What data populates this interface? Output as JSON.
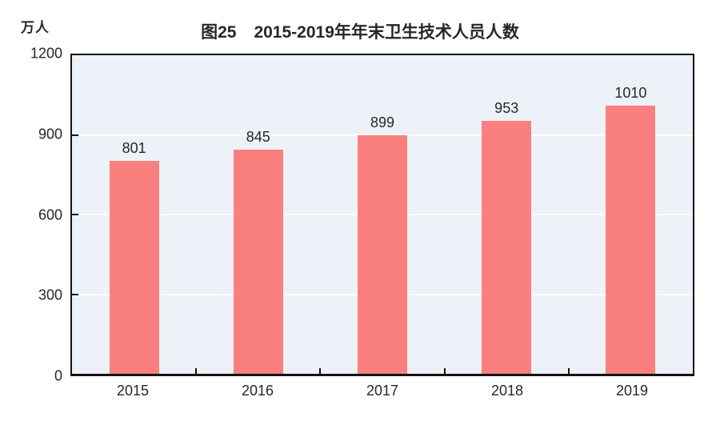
{
  "chart_data": {
    "type": "bar",
    "title_prefix": "图25",
    "title_main": "2015-2019年年末卫生技术人员人数",
    "unit_label": "万人",
    "categories": [
      "2015",
      "2016",
      "2017",
      "2018",
      "2019"
    ],
    "values": [
      801,
      845,
      899,
      953,
      1010
    ],
    "xlabel": "",
    "ylabel": "万人",
    "ylim": [
      0,
      1200
    ],
    "yticks": [
      0,
      300,
      600,
      900,
      1200
    ],
    "gridline_values": [
      300,
      600,
      900
    ],
    "grid": "horizontal",
    "legend": "none",
    "colors": {
      "bar_fill": "#FA7F7F",
      "plot_background": "#ECF2F7",
      "gridline": "#FBFDFE",
      "axis_border": "#141414",
      "text": "#26262e"
    }
  }
}
